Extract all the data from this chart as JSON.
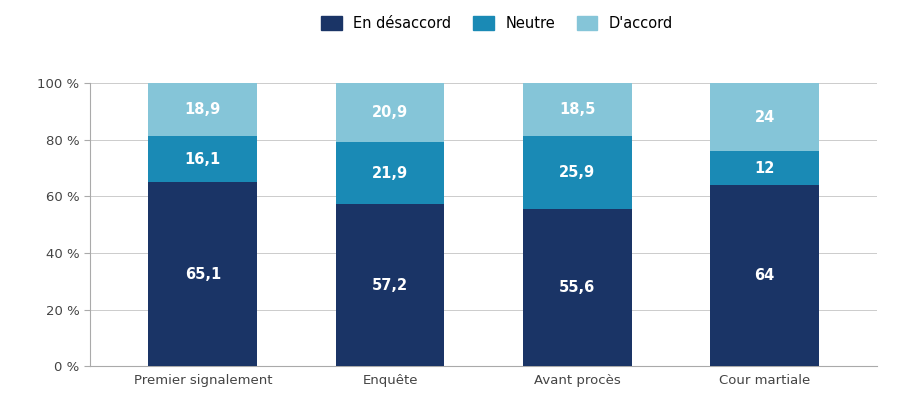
{
  "categories": [
    "Premier signalement",
    "Enquête",
    "Avant procès",
    "Cour martiale"
  ],
  "series": {
    "En désaccord": [
      65.1,
      57.2,
      55.6,
      64
    ],
    "Neutre": [
      16.1,
      21.9,
      25.9,
      12
    ],
    "D'accord": [
      18.9,
      20.9,
      18.5,
      24
    ]
  },
  "colors": {
    "En désaccord": "#1a3466",
    "Neutre": "#1a8ab5",
    "D'accord": "#85c5d8"
  },
  "legend_labels": [
    "En désaccord",
    "Neutre",
    "D'accord"
  ],
  "yticks": [
    0,
    20,
    40,
    60,
    80,
    100
  ],
  "ytick_labels": [
    "0 %",
    "20 %",
    "40 %",
    "60 %",
    "80 %",
    "100 %"
  ],
  "bar_width": 0.58,
  "label_fontsize": 10.5,
  "legend_fontsize": 10.5,
  "tick_fontsize": 9.5,
  "background_color": "#ffffff",
  "spine_color": "#aaaaaa",
  "grid_color": "#cccccc",
  "text_color": "#444444"
}
